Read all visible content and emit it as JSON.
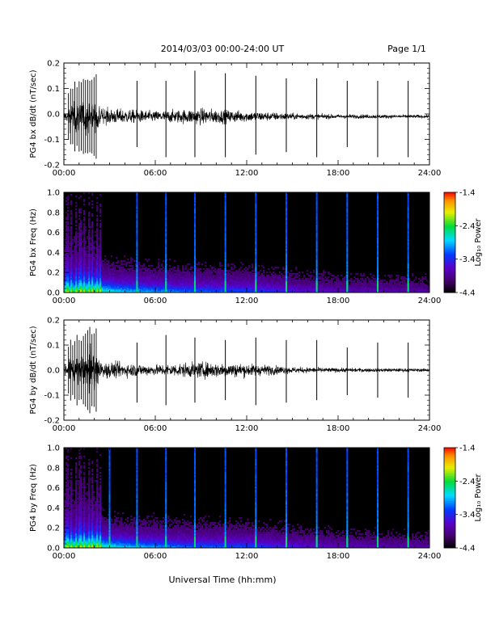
{
  "header": {
    "title": "2014/03/03  00:00-24:00 UT",
    "page_label": "Page 1/1"
  },
  "xaxis": {
    "label": "Universal Time (hh:mm)",
    "ticks": [
      "00:00",
      "06:00",
      "12:00",
      "18:00",
      "24:00"
    ]
  },
  "colorbar": {
    "label": "Log₁₀ Power",
    "ticks": [
      "-1.4",
      "-2.4",
      "-3.4",
      "-4.4"
    ],
    "range": [
      -4.4,
      -1.4
    ]
  },
  "panels": [
    {
      "type": "line",
      "ylabel": "PG4 bx dB/dt (nT/sec)",
      "yticks": [
        "0.2",
        "0.1",
        "0.0",
        "-0.1",
        "-0.2"
      ]
    },
    {
      "type": "heatmap",
      "ylabel": "PG4 bx Freq (Hz)",
      "yticks": [
        "1.0",
        "0.8",
        "0.6",
        "0.4",
        "0.2",
        "0.0"
      ]
    },
    {
      "type": "line",
      "ylabel": "PG4 by dB/dt (nT/sec)",
      "yticks": [
        "0.2",
        "0.1",
        "0.0",
        "-0.1",
        "-0.2"
      ]
    },
    {
      "type": "heatmap",
      "ylabel": "PG4 by Freq (Hz)",
      "yticks": [
        "1.0",
        "0.8",
        "0.6",
        "0.4",
        "0.2",
        "0.0"
      ]
    }
  ],
  "chart_data": [
    {
      "type": "line",
      "title": "",
      "xlabel": "",
      "ylabel": "PG4 bx dB/dt (nT/sec)",
      "xlim_hours": [
        0,
        24
      ],
      "ylim": [
        -0.2,
        0.2
      ],
      "baseline": -0.01,
      "early_oscillation": {
        "start_hour": 0.3,
        "end_hour": 2.2,
        "peak_amplitude": 0.2,
        "period_hours": 0.14
      },
      "spikes": [
        {
          "hour": 4.8,
          "high": 0.13,
          "low": -0.13
        },
        {
          "hour": 6.7,
          "high": 0.13,
          "low": -0.17
        },
        {
          "hour": 8.6,
          "high": 0.17,
          "low": -0.17
        },
        {
          "hour": 10.6,
          "high": 0.16,
          "low": -0.17
        },
        {
          "hour": 12.6,
          "high": 0.15,
          "low": -0.16
        },
        {
          "hour": 14.6,
          "high": 0.14,
          "low": -0.15
        },
        {
          "hour": 16.6,
          "high": 0.14,
          "low": -0.17
        },
        {
          "hour": 18.6,
          "high": 0.13,
          "low": -0.13
        },
        {
          "hour": 20.6,
          "high": 0.13,
          "low": -0.17
        },
        {
          "hour": 22.6,
          "high": 0.13,
          "low": -0.17
        }
      ],
      "noise_amplitude_by_hour": [
        [
          0,
          0.02
        ],
        [
          3,
          0.03
        ],
        [
          6,
          0.02
        ],
        [
          9,
          0.03
        ],
        [
          12,
          0.02
        ],
        [
          15,
          0.012
        ],
        [
          18,
          0.008
        ],
        [
          24,
          0.006
        ]
      ]
    },
    {
      "type": "heatmap",
      "title": "",
      "xlabel": "",
      "ylabel": "PG4 bx Freq (Hz)",
      "xlim_hours": [
        0,
        24
      ],
      "ylim": [
        0,
        1.0
      ],
      "value_range": [
        -4.4,
        -1.4
      ],
      "spike_hours": [
        4.8,
        6.7,
        8.6,
        10.6,
        12.6,
        14.6,
        16.6,
        18.6,
        20.6,
        22.6
      ]
    },
    {
      "type": "line",
      "title": "",
      "xlabel": "",
      "ylabel": "PG4 by dB/dt (nT/sec)",
      "xlim_hours": [
        0,
        24
      ],
      "ylim": [
        -0.2,
        0.2
      ],
      "baseline": 0.0,
      "early_oscillation": {
        "start_hour": 0.3,
        "end_hour": 2.2,
        "peak_amplitude": 0.2,
        "period_hours": 0.14
      },
      "spikes": [
        {
          "hour": 4.8,
          "high": 0.11,
          "low": -0.13
        },
        {
          "hour": 6.7,
          "high": 0.14,
          "low": -0.14
        },
        {
          "hour": 8.6,
          "high": 0.13,
          "low": -0.13
        },
        {
          "hour": 10.6,
          "high": 0.12,
          "low": -0.12
        },
        {
          "hour": 12.6,
          "high": 0.13,
          "low": -0.14
        },
        {
          "hour": 14.6,
          "high": 0.12,
          "low": -0.13
        },
        {
          "hour": 16.6,
          "high": 0.12,
          "low": -0.12
        },
        {
          "hour": 18.6,
          "high": 0.09,
          "low": -0.1
        },
        {
          "hour": 20.6,
          "high": 0.11,
          "low": -0.11
        },
        {
          "hour": 22.6,
          "high": 0.11,
          "low": -0.11
        }
      ],
      "noise_amplitude_by_hour": [
        [
          0,
          0.02
        ],
        [
          3,
          0.03
        ],
        [
          6,
          0.02
        ],
        [
          9,
          0.03
        ],
        [
          12,
          0.025
        ],
        [
          15,
          0.012
        ],
        [
          18,
          0.008
        ],
        [
          24,
          0.006
        ]
      ]
    },
    {
      "type": "heatmap",
      "title": "",
      "xlabel": "Universal Time (hh:mm)",
      "ylabel": "PG4 by Freq (Hz)",
      "xlim_hours": [
        0,
        24
      ],
      "ylim": [
        0,
        1.0
      ],
      "value_range": [
        -4.4,
        -1.4
      ],
      "spike_hours": [
        3.0,
        4.8,
        6.7,
        8.6,
        10.6,
        12.6,
        14.6,
        16.6,
        18.6,
        20.6,
        22.6
      ]
    }
  ]
}
